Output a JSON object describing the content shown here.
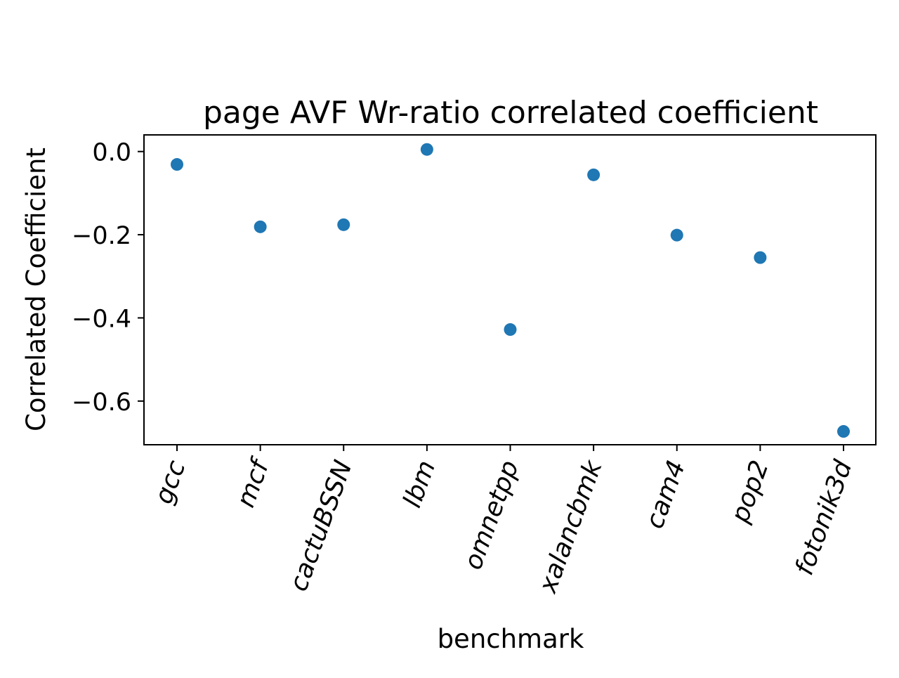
{
  "chart_data": {
    "type": "scatter",
    "title": "page AVF Wr-ratio correlated coefficient",
    "xlabel": "benchmark",
    "ylabel": "Correlated Coefficient",
    "categories": [
      "gcc",
      "mcf",
      "cactuBSSN",
      "lbm",
      "omnetpp",
      "xalancbmk",
      "cam4",
      "pop2",
      "fotonik3d"
    ],
    "values": [
      -0.031,
      -0.181,
      -0.176,
      0.005,
      -0.428,
      -0.056,
      -0.201,
      -0.255,
      -0.673
    ],
    "ylim": [
      -0.705,
      0.04
    ],
    "yticks": [
      0.0,
      -0.2,
      -0.4,
      -0.6
    ],
    "ytick_labels": [
      "0.0",
      "−0.2",
      "−0.4",
      "−0.6"
    ],
    "grid": false,
    "marker_color": "#1f77b4"
  }
}
